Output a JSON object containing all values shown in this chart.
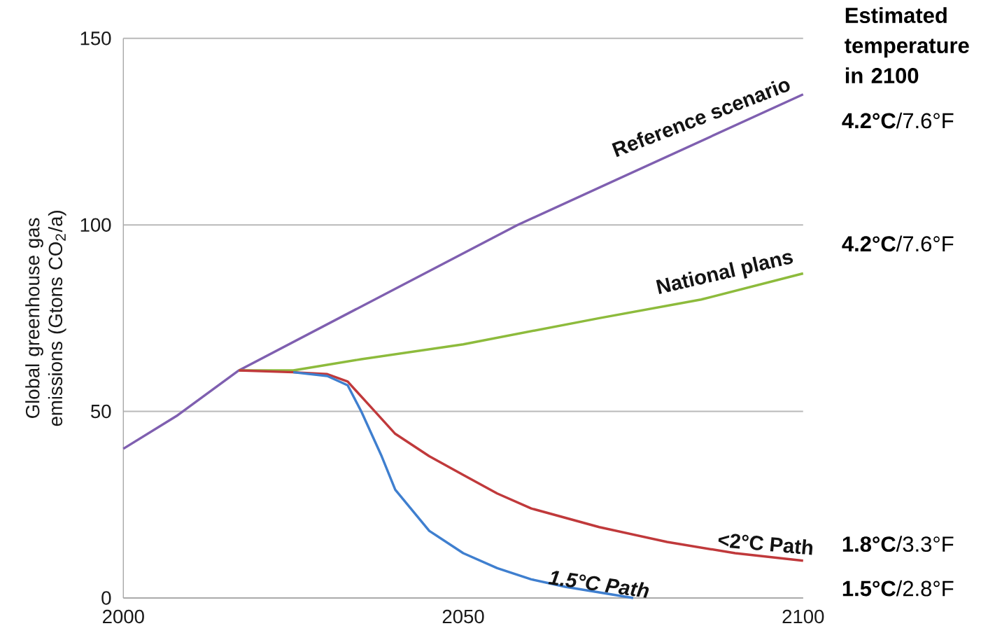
{
  "chart_data": {
    "type": "line",
    "ylabel": "Global greenhouse gas emissions (Gtons CO$_{2}$/a)",
    "xlim": [
      2000,
      2100
    ],
    "xticks": [
      2000,
      2050,
      2100
    ],
    "ylim": [
      0,
      150
    ],
    "yticks": [
      0,
      50,
      100,
      150
    ],
    "grid": "y",
    "series": [
      {
        "name": "Reference scenario",
        "color": "#7f5fb0",
        "x": [
          2000,
          2008,
          2017,
          2058,
          2100
        ],
        "values": [
          40,
          49,
          61,
          100,
          135
        ]
      },
      {
        "name": "National plans",
        "color": "#8dbb3c",
        "x": [
          2017,
          2025,
          2035,
          2050,
          2070,
          2085,
          2100
        ],
        "values": [
          61,
          61,
          64,
          68,
          75,
          80,
          87
        ]
      },
      {
        "name": "<2°C Path",
        "color": "#c0393b",
        "x": [
          2017,
          2025,
          2030,
          2033,
          2036,
          2040,
          2045,
          2050,
          2055,
          2060,
          2070,
          2080,
          2090,
          2100
        ],
        "values": [
          61,
          60.5,
          60,
          58,
          52,
          44,
          38,
          33,
          28,
          24,
          19,
          15,
          12,
          10
        ]
      },
      {
        "name": "1.5°C Path",
        "color": "#3f7fcf",
        "x": [
          2025,
          2030,
          2033,
          2035,
          2038,
          2040,
          2045,
          2050,
          2055,
          2060,
          2065,
          2070,
          2075
        ],
        "values": [
          60.5,
          59.5,
          57,
          50,
          38,
          29,
          18,
          12,
          8,
          5,
          3,
          1.5,
          0
        ]
      }
    ],
    "annotations": [
      "Estimated temperature in 2100",
      "**4.2°C**/7.6°F",
      "**4.2°C**/7.6°F",
      "**1.8°C**/3.3°F",
      "**1.5°C**/2.8°F"
    ]
  }
}
